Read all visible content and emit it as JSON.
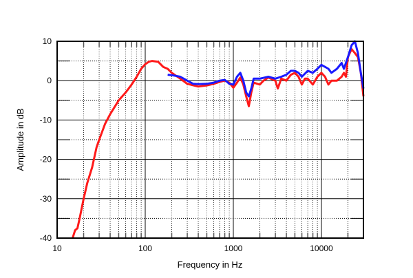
{
  "chart_data": {
    "type": "line",
    "title": "",
    "xlabel": "Frequency in Hz",
    "ylabel": "Amplitude in dB",
    "xscale": "log",
    "xlim": [
      10,
      30000
    ],
    "ylim": [
      -40,
      10
    ],
    "x_ticks": [
      {
        "v": 10,
        "label": "10"
      },
      {
        "v": 100,
        "label": "100"
      },
      {
        "v": 1000,
        "label": "1000"
      },
      {
        "v": 10000,
        "label": "10000"
      }
    ],
    "y_ticks": [
      {
        "v": 10,
        "label": "10"
      },
      {
        "v": 0,
        "label": "0"
      },
      {
        "v": -10,
        "label": "-10"
      },
      {
        "v": -20,
        "label": "-20"
      },
      {
        "v": -30,
        "label": "-30"
      },
      {
        "v": -40,
        "label": "-40"
      }
    ],
    "grid": true,
    "series": [
      {
        "name": "red",
        "color": "#ff1a1a",
        "points": [
          [
            15,
            -40
          ],
          [
            16,
            -38
          ],
          [
            17,
            -37.5
          ],
          [
            18,
            -35
          ],
          [
            20,
            -30
          ],
          [
            22,
            -26
          ],
          [
            25,
            -22
          ],
          [
            28,
            -17
          ],
          [
            30,
            -15
          ],
          [
            35,
            -11
          ],
          [
            40,
            -8.5
          ],
          [
            50,
            -5
          ],
          [
            60,
            -3
          ],
          [
            70,
            -1
          ],
          [
            80,
            1
          ],
          [
            90,
            3
          ],
          [
            100,
            4.2
          ],
          [
            110,
            4.8
          ],
          [
            120,
            5
          ],
          [
            140,
            4.8
          ],
          [
            160,
            3.5
          ],
          [
            180,
            3
          ],
          [
            200,
            2
          ],
          [
            250,
            0.5
          ],
          [
            300,
            -0.8
          ],
          [
            400,
            -1.5
          ],
          [
            500,
            -1.2
          ],
          [
            600,
            -0.8
          ],
          [
            700,
            -0.3
          ],
          [
            800,
            0
          ],
          [
            900,
            -0.5
          ],
          [
            1000,
            -1.8
          ],
          [
            1100,
            -0.5
          ],
          [
            1200,
            0.8
          ],
          [
            1300,
            -1
          ],
          [
            1400,
            -4
          ],
          [
            1500,
            -6.5
          ],
          [
            1600,
            -3
          ],
          [
            1700,
            -0.5
          ],
          [
            2000,
            -1
          ],
          [
            2200,
            0
          ],
          [
            2500,
            0.8
          ],
          [
            3000,
            0
          ],
          [
            3200,
            -2
          ],
          [
            3500,
            0.5
          ],
          [
            4000,
            0
          ],
          [
            4500,
            1.5
          ],
          [
            5000,
            2
          ],
          [
            5500,
            1
          ],
          [
            6000,
            -1
          ],
          [
            6500,
            0.5
          ],
          [
            7000,
            0.5
          ],
          [
            8000,
            -1
          ],
          [
            9000,
            1
          ],
          [
            10000,
            2
          ],
          [
            11000,
            1
          ],
          [
            12000,
            -1
          ],
          [
            13000,
            0
          ],
          [
            15000,
            0
          ],
          [
            17000,
            1
          ],
          [
            18000,
            2
          ],
          [
            19000,
            1
          ],
          [
            20000,
            6
          ],
          [
            22000,
            8
          ],
          [
            24000,
            7
          ],
          [
            26000,
            6
          ],
          [
            28000,
            2
          ],
          [
            30000,
            -4
          ]
        ]
      },
      {
        "name": "blue",
        "color": "#1a1aff",
        "points": [
          [
            180,
            1.5
          ],
          [
            200,
            1.4
          ],
          [
            250,
            1
          ],
          [
            300,
            0
          ],
          [
            350,
            -0.8
          ],
          [
            400,
            -0.9
          ],
          [
            500,
            -0.8
          ],
          [
            600,
            -0.5
          ],
          [
            700,
            0
          ],
          [
            800,
            0.2
          ],
          [
            900,
            -0.8
          ],
          [
            1000,
            -1
          ],
          [
            1100,
            1
          ],
          [
            1200,
            2
          ],
          [
            1300,
            0
          ],
          [
            1400,
            -3
          ],
          [
            1500,
            -4
          ],
          [
            1600,
            -2
          ],
          [
            1700,
            0.5
          ],
          [
            2000,
            0.5
          ],
          [
            2500,
            1
          ],
          [
            3000,
            0.5
          ],
          [
            3500,
            1
          ],
          [
            4000,
            1.5
          ],
          [
            4500,
            2.5
          ],
          [
            5000,
            2.5
          ],
          [
            5500,
            2
          ],
          [
            6000,
            1
          ],
          [
            7000,
            2.5
          ],
          [
            8000,
            2
          ],
          [
            9000,
            3
          ],
          [
            10000,
            4
          ],
          [
            11000,
            3.5
          ],
          [
            12000,
            3
          ],
          [
            13000,
            2
          ],
          [
            15000,
            3
          ],
          [
            17000,
            4.5
          ],
          [
            18000,
            3
          ],
          [
            20000,
            6
          ],
          [
            22000,
            9
          ],
          [
            24000,
            10
          ],
          [
            26000,
            7
          ],
          [
            28000,
            2
          ],
          [
            30000,
            -2
          ]
        ]
      }
    ]
  }
}
